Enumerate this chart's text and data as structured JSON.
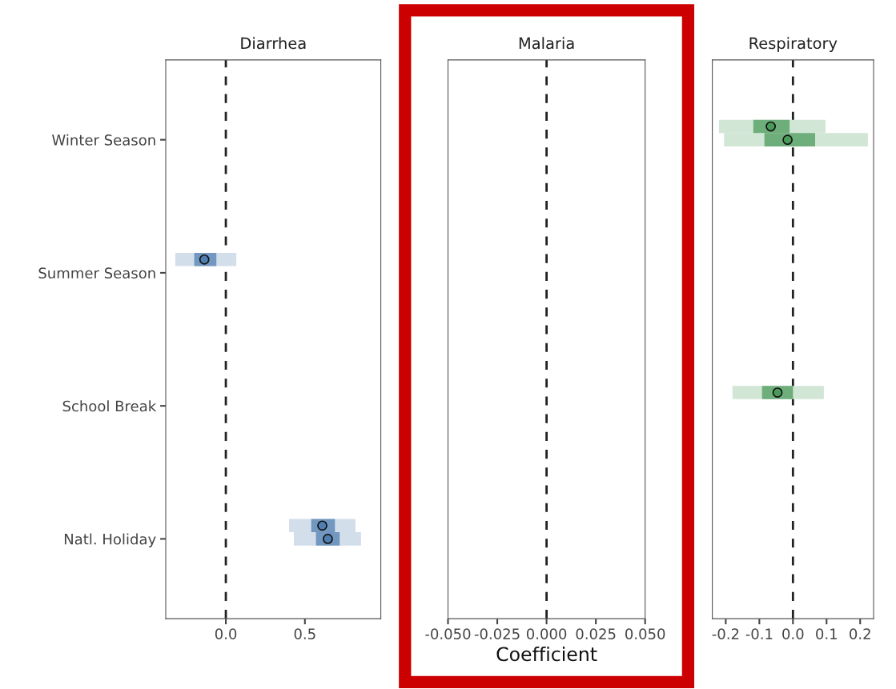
{
  "chart_data": [
    {
      "type": "bar",
      "orientation": "horizontal",
      "title": "Diarrhea",
      "categories": [
        "Winter Season",
        "Summer Season",
        "School Break",
        "Natl. Holiday"
      ],
      "xlim": [
        -0.38,
        0.98
      ],
      "xticks": [
        {
          "value": 0,
          "label": "0.0"
        },
        0.5
      ],
      "marker": "circle",
      "grid": false,
      "legend": false,
      "ref_lines": [
        {
          "axis": "x",
          "value": 0,
          "line_style": "dashed",
          "color": "#222222"
        }
      ],
      "series": [
        {
          "color": "#d3deeb",
          "base": [
            null,
            -0.32,
            null,
            0.4
          ],
          "values": [
            null,
            0.386,
            null,
            0.42
          ]
        },
        {
          "color": "#7297c0",
          "base": [
            null,
            -0.2,
            null,
            0.54
          ],
          "values": [
            null,
            0.14,
            null,
            0.15
          ]
        },
        {
          "type": "scatter",
          "color": "#4f7db0",
          "values": [
            null,
            -0.136,
            null,
            0.61
          ]
        },
        {
          "color": "#d3deeb",
          "base": [
            null,
            null,
            null,
            0.43
          ],
          "values": [
            null,
            null,
            null,
            0.425
          ]
        },
        {
          "color": "#7297c0",
          "base": [
            null,
            null,
            null,
            0.57
          ],
          "values": [
            null,
            null,
            null,
            0.15
          ]
        },
        {
          "type": "scatter",
          "color": "#4f7db0",
          "values": [
            null,
            null,
            null,
            0.645
          ]
        }
      ]
    },
    {
      "type": "bar",
      "orientation": "horizontal",
      "title": "Malaria",
      "categories": [
        null,
        null,
        null,
        null
      ],
      "xlabel": "Coefficient",
      "xlim": [
        -0.05,
        0.05
      ],
      "xticks": [
        {
          "value": -0.05,
          "label": "-0.050"
        },
        {
          "value": -0.025,
          "label": "-0.025"
        },
        {
          "value": 0,
          "label": "0.000"
        },
        {
          "value": 0.025,
          "label": "0.025"
        },
        {
          "value": 0.05,
          "label": "0.050"
        }
      ],
      "tick_labels": "x",
      "grid": false,
      "legend": false,
      "ref_lines": [
        {
          "axis": "x",
          "value": 0,
          "line_style": "dashed",
          "color": "#222222"
        }
      ]
    },
    {
      "type": "bar",
      "orientation": "horizontal",
      "title": "Respiratory",
      "categories": [
        null,
        null,
        null,
        null
      ],
      "xlim": [
        -0.24,
        0.24
      ],
      "xticks": [
        {
          "value": -0.2,
          "label": "-0.2"
        },
        {
          "value": -0.1,
          "label": "-0.1"
        },
        {
          "value": 0,
          "label": "0.0"
        },
        0.1,
        0.2
      ],
      "tick_labels": "x",
      "marker": "circle",
      "grid": false,
      "legend": false,
      "ref_lines": [
        {
          "axis": "x",
          "value": 0,
          "line_style": "dashed",
          "color": "#222222"
        }
      ],
      "series": [
        {
          "color": "#d2e6d6",
          "base": [
            -0.22,
            null,
            -0.18,
            null
          ],
          "values": [
            0.317,
            null,
            0.272,
            null
          ]
        },
        {
          "color": "#6eae7b",
          "base": [
            -0.118,
            null,
            -0.092,
            null
          ],
          "values": [
            0.108,
            null,
            0.092,
            null
          ]
        },
        {
          "type": "scatter",
          "color": "#4a9a5a",
          "values": [
            -0.066,
            null,
            -0.046,
            null
          ]
        },
        {
          "color": "#d2e6d6",
          "base": [
            -0.205,
            null,
            null,
            null
          ],
          "values": [
            0.428,
            null,
            null,
            null
          ]
        },
        {
          "color": "#6eae7b",
          "base": [
            -0.085,
            null,
            null,
            null
          ],
          "values": [
            0.151,
            null,
            null,
            null
          ]
        },
        {
          "type": "scatter",
          "color": "#4a9a5a",
          "values": [
            -0.016,
            null,
            null,
            null
          ]
        }
      ]
    }
  ]
}
